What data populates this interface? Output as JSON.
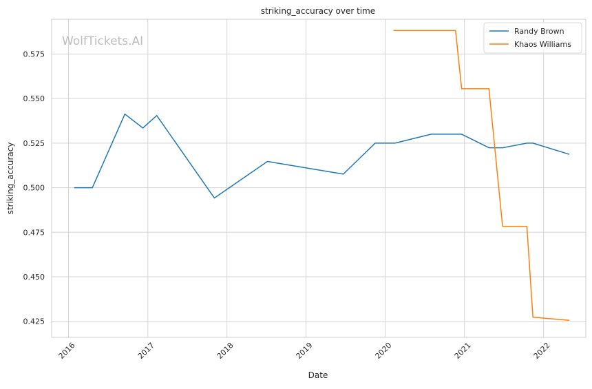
{
  "chart_data": {
    "type": "line",
    "title": "striking_accuracy over time",
    "xlabel": "Date",
    "ylabel": "striking_accuracy",
    "watermark": "WolfTickets.AI",
    "xlim": [
      "2015-10-15",
      "2022-07-15"
    ],
    "ylim": [
      0.416,
      0.5945
    ],
    "x_ticks": [
      {
        "date": "2016-01-01",
        "label": "2016"
      },
      {
        "date": "2017-01-01",
        "label": "2017"
      },
      {
        "date": "2018-01-01",
        "label": "2018"
      },
      {
        "date": "2019-01-01",
        "label": "2019"
      },
      {
        "date": "2020-01-01",
        "label": "2020"
      },
      {
        "date": "2021-01-01",
        "label": "2021"
      },
      {
        "date": "2022-01-01",
        "label": "2022"
      }
    ],
    "y_ticks": [
      0.425,
      0.45,
      0.475,
      0.5,
      0.525,
      0.55,
      0.575
    ],
    "y_tick_labels": [
      "0.425",
      "0.450",
      "0.475",
      "0.500",
      "0.525",
      "0.550",
      "0.575"
    ],
    "grid": true,
    "legend_position": "top-right",
    "series": [
      {
        "name": "Randy Brown",
        "color": "#1f77b4",
        "points": [
          [
            "2016-01-27",
            0.5
          ],
          [
            "2016-04-20",
            0.5
          ],
          [
            "2016-09-17",
            0.5413
          ],
          [
            "2016-12-09",
            0.5335
          ],
          [
            "2017-02-11",
            0.5405
          ],
          [
            "2017-11-04",
            0.4942
          ],
          [
            "2018-07-07",
            0.5147
          ],
          [
            "2019-06-22",
            0.5076
          ],
          [
            "2019-11-16",
            0.525
          ],
          [
            "2020-02-15",
            0.525
          ],
          [
            "2020-08-01",
            0.53
          ],
          [
            "2020-12-19",
            0.53
          ],
          [
            "2021-04-24",
            0.5224
          ],
          [
            "2021-06-26",
            0.5224
          ],
          [
            "2021-10-16",
            0.525
          ],
          [
            "2021-11-13",
            0.525
          ],
          [
            "2022-04-30",
            0.5187
          ]
        ]
      },
      {
        "name": "Khaos Williams",
        "color": "#ff7f0e",
        "points": [
          [
            "2020-02-08",
            0.5882
          ],
          [
            "2020-11-21",
            0.5882
          ],
          [
            "2020-12-19",
            0.5555
          ],
          [
            "2021-04-24",
            0.5555
          ],
          [
            "2021-06-26",
            0.4783
          ],
          [
            "2021-10-16",
            0.4783
          ],
          [
            "2021-11-13",
            0.4273
          ],
          [
            "2022-04-30",
            0.4256
          ]
        ]
      }
    ]
  }
}
